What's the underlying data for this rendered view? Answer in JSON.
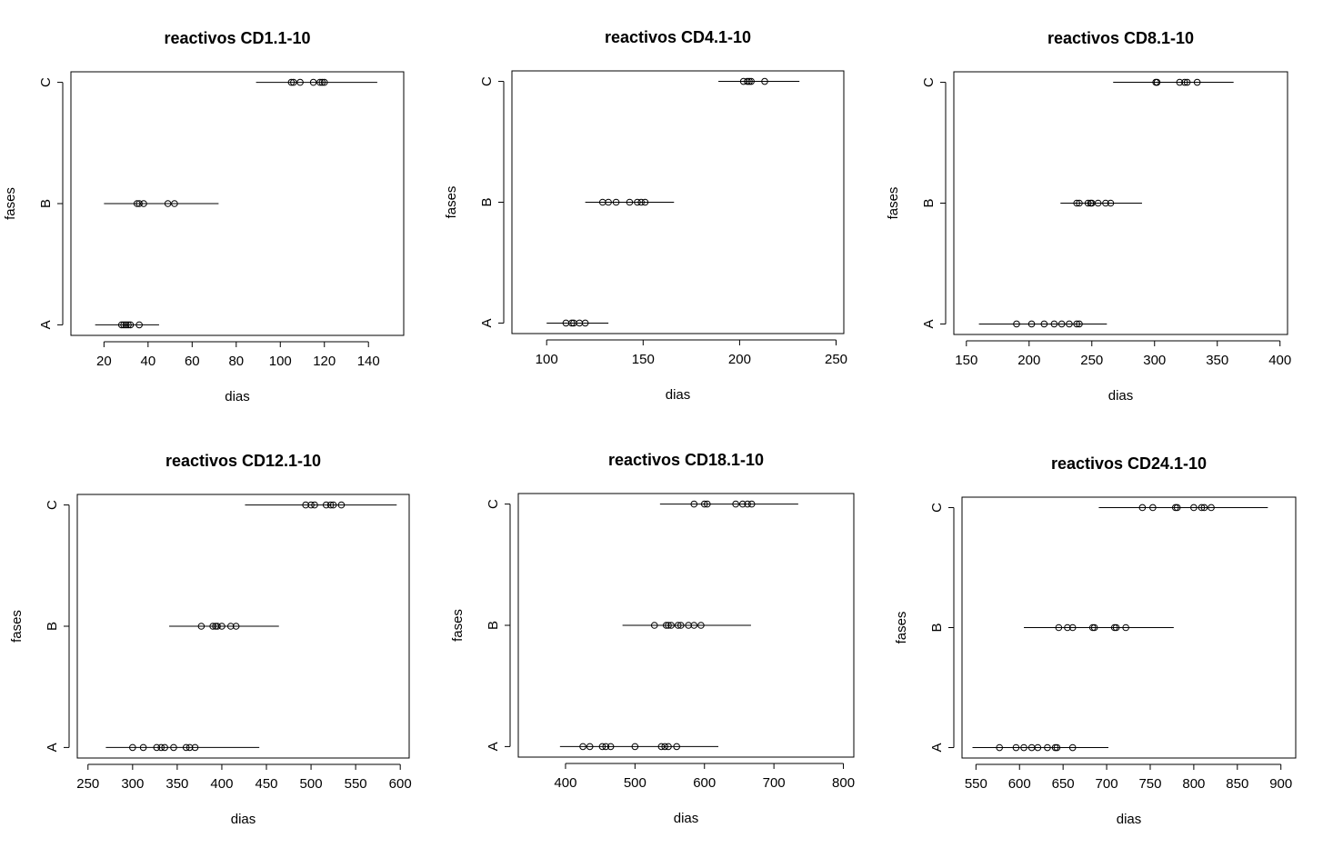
{
  "chart_data": [
    {
      "type": "scatter",
      "title": "reactivos CD1.1-10",
      "xlabel": "dias",
      "ylabel": "fases",
      "categories": [
        "A",
        "B",
        "C"
      ],
      "xlim": [
        5,
        156
      ],
      "xticks": [
        20,
        40,
        60,
        80,
        100,
        120,
        140
      ],
      "series": [
        {
          "category": "A",
          "x": [
            28,
            29,
            30,
            31,
            32,
            36
          ],
          "range": [
            16,
            45
          ]
        },
        {
          "category": "B",
          "x": [
            35,
            36,
            38,
            49,
            52
          ],
          "range": [
            20,
            72
          ]
        },
        {
          "category": "C",
          "x": [
            105,
            106,
            109,
            115,
            118,
            119,
            120
          ],
          "range": [
            89,
            144
          ]
        }
      ]
    },
    {
      "type": "scatter",
      "title": "reactivos CD4.1-10",
      "xlabel": "dias",
      "ylabel": "fases",
      "categories": [
        "A",
        "B",
        "C"
      ],
      "xlim": [
        82,
        254
      ],
      "xticks": [
        100,
        150,
        200,
        250
      ],
      "series": [
        {
          "category": "A",
          "x": [
            110,
            113,
            114,
            117,
            120
          ],
          "range": [
            100,
            132
          ]
        },
        {
          "category": "B",
          "x": [
            129,
            132,
            136,
            143,
            147,
            149,
            151
          ],
          "range": [
            120,
            166
          ]
        },
        {
          "category": "C",
          "x": [
            202,
            204,
            205,
            206,
            213
          ],
          "range": [
            189,
            231
          ]
        }
      ]
    },
    {
      "type": "scatter",
      "title": "reactivos CD8.1-10",
      "xlabel": "dias",
      "ylabel": "fases",
      "categories": [
        "A",
        "B",
        "C"
      ],
      "xlim": [
        140,
        406
      ],
      "xticks": [
        150,
        200,
        250,
        300,
        350,
        400
      ],
      "series": [
        {
          "category": "A",
          "x": [
            190,
            202,
            212,
            220,
            226,
            232,
            238,
            240
          ],
          "range": [
            160,
            262
          ]
        },
        {
          "category": "B",
          "x": [
            238,
            240,
            247,
            249,
            250,
            255,
            261,
            265
          ],
          "range": [
            225,
            290
          ]
        },
        {
          "category": "C",
          "x": [
            301,
            302,
            320,
            324,
            326,
            334
          ],
          "range": [
            267,
            363
          ]
        }
      ]
    },
    {
      "type": "scatter",
      "title": "reactivos CD12.1-10",
      "xlabel": "dias",
      "ylabel": "fases",
      "categories": [
        "A",
        "B",
        "C"
      ],
      "xlim": [
        238,
        610
      ],
      "xticks": [
        250,
        300,
        350,
        400,
        450,
        500,
        550,
        600
      ],
      "series": [
        {
          "category": "A",
          "x": [
            300,
            312,
            327,
            332,
            336,
            346,
            360,
            364,
            370
          ],
          "range": [
            270,
            442
          ]
        },
        {
          "category": "B",
          "x": [
            377,
            390,
            393,
            395,
            400,
            410,
            416
          ],
          "range": [
            341,
            464
          ]
        },
        {
          "category": "C",
          "x": [
            494,
            500,
            504,
            517,
            522,
            525,
            534
          ],
          "range": [
            426,
            596
          ]
        }
      ]
    },
    {
      "type": "scatter",
      "title": "reactivos CD18.1-10",
      "xlabel": "dias",
      "ylabel": "fases",
      "categories": [
        "A",
        "B",
        "C"
      ],
      "xlim": [
        332,
        815
      ],
      "xticks": [
        400,
        500,
        600,
        700,
        800
      ],
      "series": [
        {
          "category": "A",
          "x": [
            425,
            435,
            453,
            458,
            465,
            500,
            538,
            543,
            548,
            560
          ],
          "range": [
            392,
            620
          ]
        },
        {
          "category": "B",
          "x": [
            528,
            545,
            548,
            552,
            562,
            566,
            577,
            585,
            595
          ],
          "range": [
            482,
            667
          ]
        },
        {
          "category": "C",
          "x": [
            585,
            600,
            604,
            645,
            655,
            662,
            668
          ],
          "range": [
            536,
            735
          ]
        }
      ]
    },
    {
      "type": "scatter",
      "title": "reactivos CD24.1-10",
      "xlabel": "dias",
      "ylabel": "fases",
      "categories": [
        "A",
        "B",
        "C"
      ],
      "xlim": [
        534,
        917
      ],
      "xticks": [
        550,
        600,
        650,
        700,
        750,
        800,
        850,
        900
      ],
      "series": [
        {
          "category": "A",
          "x": [
            577,
            596,
            605,
            614,
            621,
            632,
            641,
            643,
            661
          ],
          "range": [
            546,
            702
          ]
        },
        {
          "category": "B",
          "x": [
            645,
            655,
            661,
            684,
            686,
            709,
            711,
            722
          ],
          "range": [
            605,
            777
          ]
        },
        {
          "category": "C",
          "x": [
            741,
            753,
            779,
            781,
            800,
            809,
            812,
            820
          ],
          "range": [
            691,
            885
          ]
        }
      ]
    }
  ]
}
